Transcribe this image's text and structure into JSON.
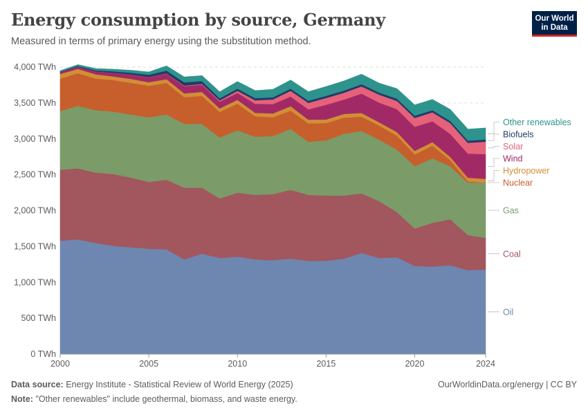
{
  "header": {
    "title": "Energy consumption by source, Germany",
    "subtitle": "Measured in terms of primary energy using the substitution method.",
    "logo_line1": "Our World",
    "logo_line2": "in Data"
  },
  "footer": {
    "source_label": "Data source:",
    "source_text": "Energy Institute - Statistical Review of World Energy (2025)",
    "note_label": "Note:",
    "note_text": "\"Other renewables\" include geothermal, biomass, and waste energy.",
    "credit": "OurWorldinData.org/energy | CC BY"
  },
  "colors": {
    "oil": "#6d87b0",
    "coal": "#a2565e",
    "gas": "#7b9b68",
    "nuclear": "#c65f2c",
    "hydropower": "#d28e36",
    "wind": "#a12a66",
    "solar": "#e6617a",
    "biofuels": "#1f3c68",
    "other_renewables": "#2e938c"
  },
  "chart_data": {
    "type": "area",
    "stacked": true,
    "x": [
      2000,
      2001,
      2002,
      2003,
      2004,
      2005,
      2006,
      2007,
      2008,
      2009,
      2010,
      2011,
      2012,
      2013,
      2014,
      2015,
      2016,
      2017,
      2018,
      2019,
      2020,
      2021,
      2022,
      2023,
      2024
    ],
    "x_ticks": [
      "2000",
      "2005",
      "2010",
      "2015",
      "2020",
      "2024"
    ],
    "y_ticks": [
      "0 TWh",
      "500 TWh",
      "1,000 TWh",
      "1,500 TWh",
      "2,000 TWh",
      "2,500 TWh",
      "3,000 TWh",
      "3,500 TWh",
      "4,000 TWh"
    ],
    "ylim": [
      0,
      4000
    ],
    "grid": true,
    "unit": "TWh",
    "series": [
      {
        "key": "oil",
        "name": "Oil",
        "values": [
          1580,
          1600,
          1550,
          1510,
          1490,
          1470,
          1460,
          1320,
          1400,
          1340,
          1360,
          1320,
          1310,
          1330,
          1300,
          1300,
          1330,
          1410,
          1340,
          1350,
          1230,
          1220,
          1240,
          1170,
          1180
        ]
      },
      {
        "key": "coal",
        "name": "Coal",
        "values": [
          990,
          990,
          980,
          1000,
          970,
          930,
          970,
          1000,
          920,
          830,
          890,
          900,
          920,
          960,
          920,
          910,
          880,
          830,
          790,
          630,
          520,
          610,
          640,
          490,
          440
        ]
      },
      {
        "key": "gas",
        "name": "Gas",
        "values": [
          820,
          870,
          870,
          870,
          880,
          900,
          910,
          890,
          890,
          850,
          870,
          810,
          810,
          850,
          740,
          770,
          860,
          870,
          860,
          870,
          870,
          900,
          740,
          730,
          770
        ]
      },
      {
        "key": "nuclear",
        "name": "Nuclear",
        "values": [
          450,
          455,
          440,
          440,
          440,
          440,
          440,
          370,
          390,
          355,
          370,
          285,
          260,
          255,
          255,
          240,
          225,
          200,
          195,
          195,
          165,
          175,
          86,
          18,
          0
        ]
      },
      {
        "key": "hydropower",
        "name": "Hydropower",
        "values": [
          65,
          60,
          60,
          50,
          55,
          50,
          52,
          55,
          55,
          50,
          55,
          48,
          55,
          60,
          52,
          50,
          52,
          52,
          45,
          50,
          48,
          50,
          45,
          52,
          52
        ]
      },
      {
        "key": "wind",
        "name": "Wind",
        "values": [
          25,
          30,
          40,
          50,
          60,
          70,
          75,
          100,
          100,
          95,
          95,
          125,
          130,
          135,
          145,
          205,
          200,
          270,
          275,
          320,
          335,
          290,
          320,
          335,
          345
        ]
      },
      {
        "key": "solar",
        "name": "Solar",
        "values": [
          0,
          0,
          1,
          1,
          2,
          3,
          5,
          8,
          11,
          16,
          30,
          50,
          65,
          80,
          90,
          95,
          95,
          100,
          110,
          115,
          125,
          125,
          150,
          150,
          175
        ]
      },
      {
        "key": "biofuels",
        "name": "Biofuels",
        "values": [
          5,
          10,
          15,
          20,
          25,
          30,
          40,
          45,
          40,
          30,
          30,
          30,
          30,
          30,
          30,
          30,
          30,
          30,
          30,
          30,
          30,
          30,
          30,
          30,
          30
        ]
      },
      {
        "key": "other_renewables",
        "name": "Other renewables",
        "values": [
          15,
          20,
          25,
          30,
          35,
          40,
          65,
          75,
          75,
          90,
          100,
          105,
          110,
          120,
          125,
          130,
          135,
          140,
          130,
          140,
          150,
          150,
          160,
          160,
          160
        ]
      }
    ]
  }
}
